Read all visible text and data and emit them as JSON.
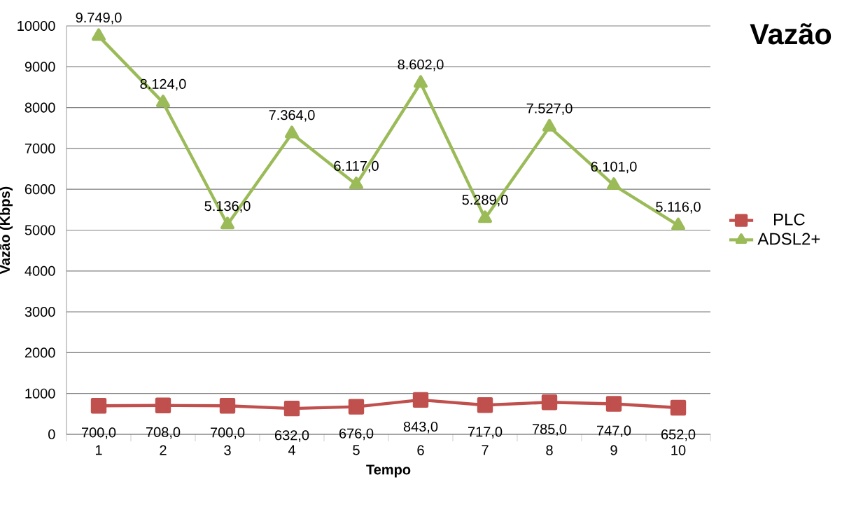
{
  "chart_data": {
    "type": "line",
    "title": "Vazão",
    "xlabel": "Tempo",
    "ylabel": "Vazão (Kbps)",
    "categories": [
      "1",
      "2",
      "3",
      "4",
      "5",
      "6",
      "7",
      "8",
      "9",
      "10"
    ],
    "ylim": [
      0,
      10000
    ],
    "yticks": [
      0,
      1000,
      2000,
      3000,
      4000,
      5000,
      6000,
      7000,
      8000,
      9000,
      10000
    ],
    "grid": "y",
    "legend": "right",
    "series": [
      {
        "name": "PLC",
        "color": "#c0504d",
        "marker": "square",
        "values": [
          700,
          708,
          700,
          632,
          676,
          843,
          717,
          785,
          747,
          652
        ],
        "value_labels": [
          "700,0",
          "708,0",
          "700,0",
          "632,0",
          "676,0",
          "843,0",
          "717,0",
          "785,0",
          "747,0",
          "652,0"
        ]
      },
      {
        "name": "ADSL2+",
        "color": "#9bbb59",
        "marker": "triangle",
        "values": [
          9749,
          8124,
          5136,
          7364,
          6117,
          8602,
          5289,
          7527,
          6101,
          5116
        ],
        "value_labels": [
          "9.749,0",
          "8.124,0",
          "5.136,0",
          "7.364,0",
          "6.117,0",
          "8.602,0",
          "5.289,0",
          "7.527,0",
          "6.101,0",
          "5.116,0"
        ]
      }
    ]
  }
}
